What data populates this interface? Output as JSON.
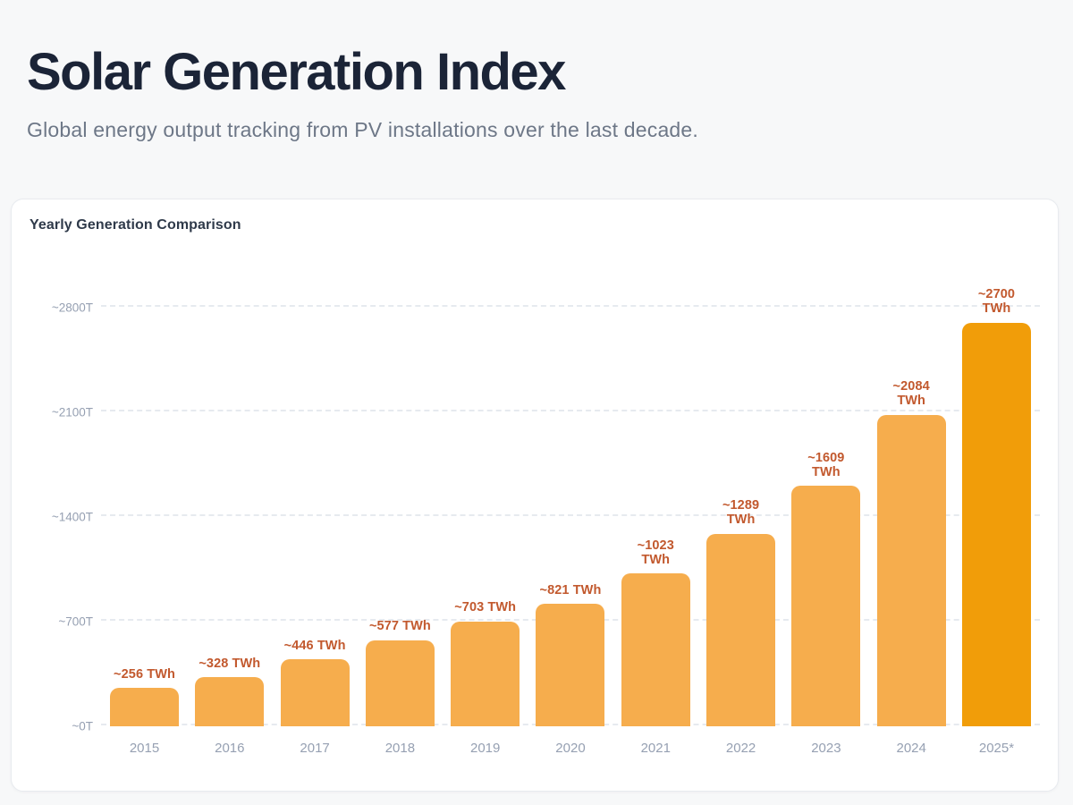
{
  "page": {
    "title": "Solar Generation Index",
    "subtitle": "Global energy output tracking from PV installations over the last decade."
  },
  "card": {
    "title": "Yearly Generation Comparison"
  },
  "chart_data": {
    "type": "bar",
    "title": "Yearly Generation Comparison",
    "categories": [
      "2015",
      "2016",
      "2017",
      "2018",
      "2019",
      "2020",
      "2021",
      "2022",
      "2023",
      "2024",
      "2025*"
    ],
    "values": [
      256,
      328,
      446,
      577,
      703,
      821,
      1023,
      1289,
      1609,
      2084,
      2700
    ],
    "bar_labels": [
      [
        "~256 TWh"
      ],
      [
        "~328 TWh"
      ],
      [
        "~446 TWh"
      ],
      [
        "~577 TWh"
      ],
      [
        "~703 TWh"
      ],
      [
        "~821 TWh"
      ],
      [
        "~1023",
        "TWh"
      ],
      [
        "~1289",
        "TWh"
      ],
      [
        "~1609",
        "TWh"
      ],
      [
        "~2084",
        "TWh"
      ],
      [
        "~2700",
        "TWh"
      ]
    ],
    "highlight_index": 10,
    "ylim": [
      0,
      2800
    ],
    "y_ticks": [
      {
        "value": 0,
        "label": "~0T"
      },
      {
        "value": 700,
        "label": "~700T"
      },
      {
        "value": 1400,
        "label": "~1400T"
      },
      {
        "value": 2100,
        "label": "~2100T"
      },
      {
        "value": 2800,
        "label": "~2800T"
      }
    ],
    "xlabel": "",
    "ylabel": "",
    "grid": "horizontal-dashed",
    "legend": "none",
    "colors": {
      "bar": "#f6ad4d",
      "bar_highlight": "#f19d09",
      "value_label": "#c2592e",
      "axis_label": "#96a0b2",
      "gridline": "#e6eaef"
    }
  }
}
